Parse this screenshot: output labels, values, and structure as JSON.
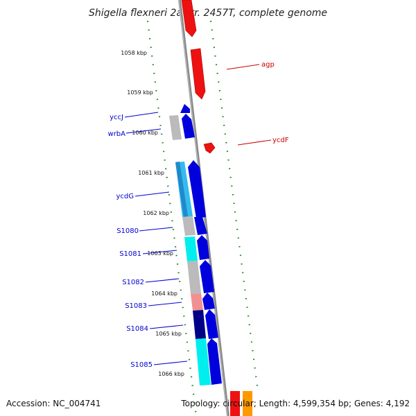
{
  "title": "Shigella flexneri 2a str. 2457T, complete genome",
  "footer": {
    "accession": "Accession: NC_004741",
    "topology": "Topology: circular; Length: 4,599,354 bp; Genes: 4,192"
  },
  "colors": {
    "backbone": "#888888",
    "tick": "#1a8a1a",
    "reverse_strand_label": "#0000cc",
    "forward_strand_label": "#cc0000"
  },
  "ticks": [
    {
      "label": "1058 kbp"
    },
    {
      "label": "1059 kbp"
    },
    {
      "label": "1060 kbp"
    },
    {
      "label": "1061 kbp"
    },
    {
      "label": "1062 kbp"
    },
    {
      "label": "1063 kbp"
    },
    {
      "label": "1064 kbp"
    },
    {
      "label": "1065 kbp"
    },
    {
      "label": "1066 kbp"
    }
  ],
  "genes": [
    {
      "name": "agp",
      "strand": "forward"
    },
    {
      "name": "ycdF",
      "strand": "forward"
    },
    {
      "name": "yccJ",
      "strand": "reverse"
    },
    {
      "name": "wrbA",
      "strand": "reverse"
    },
    {
      "name": "ycdG",
      "strand": "reverse"
    },
    {
      "name": "S1080",
      "strand": "reverse"
    },
    {
      "name": "S1081",
      "strand": "reverse"
    },
    {
      "name": "S1082",
      "strand": "reverse"
    },
    {
      "name": "S1083",
      "strand": "reverse"
    },
    {
      "name": "S1084",
      "strand": "reverse"
    },
    {
      "name": "S1085",
      "strand": "reverse"
    }
  ]
}
